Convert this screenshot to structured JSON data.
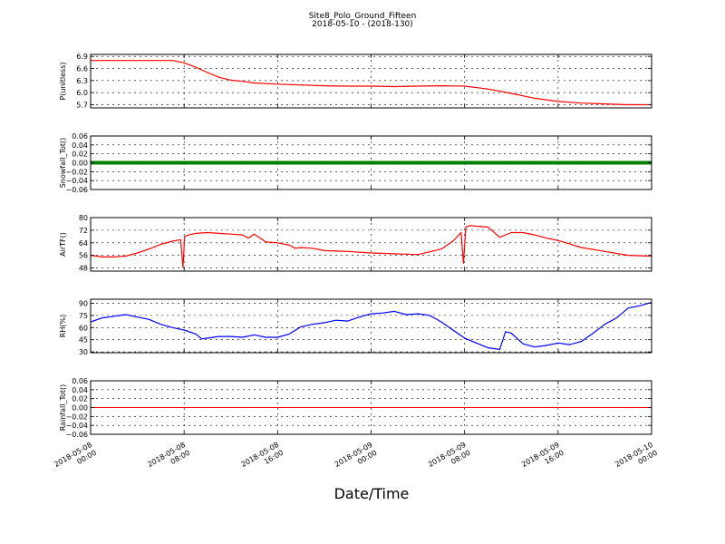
{
  "figure": {
    "title": "Site8_Polo_Ground_Fifteen",
    "subtitle": "2018-05-10 - (2018-130)",
    "xlabel": "Date/Time",
    "x_tick_labels": [
      [
        "2018-05-08",
        "00:00"
      ],
      [
        "2018-05-08",
        "08:00"
      ],
      [
        "2018-05-08",
        "16:00"
      ],
      [
        "2018-05-09",
        "00:00"
      ],
      [
        "2018-05-09",
        "08:00"
      ],
      [
        "2018-05-09",
        "16:00"
      ],
      [
        "2018-05-10",
        "00:00"
      ]
    ]
  },
  "chart_data": [
    {
      "type": "line",
      "ylabel": "P(unitless)",
      "color": "#ff0000",
      "xlim_hours": [
        0,
        48
      ],
      "ylim": [
        5.62,
        6.95
      ],
      "yticks": [
        5.7,
        6.0,
        6.3,
        6.6,
        6.9
      ],
      "ytick_labels": [
        "5.7",
        "6.0",
        "6.3",
        "6.6",
        "6.9"
      ],
      "grid": true,
      "x": [
        0,
        7,
        8,
        9,
        10,
        11,
        12,
        13,
        14,
        16,
        18,
        20,
        22,
        24,
        26,
        28,
        30,
        32,
        34,
        36,
        38,
        40,
        42,
        44,
        46,
        48
      ],
      "values": [
        6.8,
        6.8,
        6.74,
        6.63,
        6.5,
        6.38,
        6.31,
        6.28,
        6.24,
        6.21,
        6.19,
        6.17,
        6.16,
        6.16,
        6.15,
        6.16,
        6.17,
        6.16,
        6.09,
        5.98,
        5.86,
        5.78,
        5.74,
        5.72,
        5.7,
        5.7
      ]
    },
    {
      "type": "line",
      "ylabel": "Snowfall_Tot()",
      "color": "#008000",
      "xlim_hours": [
        0,
        48
      ],
      "ylim": [
        -0.06,
        0.06
      ],
      "yticks": [
        -0.06,
        -0.04,
        -0.02,
        0.0,
        0.02,
        0.04,
        0.06
      ],
      "ytick_labels": [
        "−0.06",
        "−0.04",
        "−0.02",
        "0.00",
        "0.02",
        "0.04",
        "0.06"
      ],
      "grid": true,
      "x": [
        0,
        48
      ],
      "values": [
        0,
        0
      ]
    },
    {
      "type": "line",
      "ylabel": "AirTF()",
      "color": "#ff0000",
      "xlim_hours": [
        0,
        48
      ],
      "ylim": [
        46,
        80
      ],
      "yticks": [
        48,
        56,
        64,
        72,
        80
      ],
      "ytick_labels": [
        "48",
        "56",
        "64",
        "72",
        "80"
      ],
      "grid": true,
      "x": [
        0,
        1,
        2,
        3,
        4,
        5,
        6,
        7,
        7.7,
        7.9,
        8.05,
        8.4,
        9,
        10,
        11,
        12,
        13,
        13.5,
        14,
        15,
        16,
        17,
        17.5,
        18,
        19,
        20,
        22,
        24,
        26,
        28,
        30,
        31,
        31.7,
        31.9,
        32.1,
        32.5,
        33,
        34,
        35,
        36,
        37,
        38,
        39,
        40,
        42,
        44,
        46,
        48
      ],
      "values": [
        56,
        55,
        55,
        55.5,
        57.5,
        60,
        63,
        65,
        66,
        48.5,
        68,
        69,
        70,
        70.5,
        70,
        69.5,
        69,
        67,
        69.5,
        64.5,
        64,
        62.5,
        60.5,
        61,
        60.5,
        59,
        58.5,
        57.5,
        57,
        56.5,
        60,
        65,
        70.5,
        51,
        74,
        75,
        74.5,
        74,
        67.5,
        70.5,
        70.5,
        69,
        67,
        65.5,
        61,
        58.5,
        56,
        55.5
      ]
    },
    {
      "type": "line",
      "ylabel": "RH(%)",
      "color": "#0000ff",
      "xlim_hours": [
        0,
        48
      ],
      "ylim": [
        29,
        95
      ],
      "yticks": [
        30,
        45,
        60,
        75,
        90
      ],
      "ytick_labels": [
        "30",
        "45",
        "60",
        "75",
        "90"
      ],
      "grid": true,
      "x": [
        0,
        1,
        2,
        3,
        4,
        5,
        6,
        7,
        8,
        9,
        9.5,
        10,
        11,
        12,
        13,
        14,
        15,
        16,
        17,
        18,
        19,
        20,
        21,
        22,
        23,
        24,
        25,
        26,
        27,
        28,
        29,
        30,
        31,
        32,
        33,
        34,
        35,
        35.5,
        36,
        37,
        38,
        39,
        40,
        41,
        42,
        43,
        44,
        45,
        46,
        47,
        48
      ],
      "values": [
        67,
        72,
        74,
        76,
        73,
        70,
        64,
        60,
        57,
        52,
        46,
        47,
        49,
        49,
        48,
        51,
        48,
        48,
        52,
        61,
        64,
        66,
        69,
        68,
        73,
        77,
        78,
        80,
        76,
        77,
        75,
        67,
        57,
        47,
        41,
        35,
        33,
        55,
        53,
        40,
        36,
        38,
        41,
        39,
        43,
        53,
        64,
        72,
        84,
        87,
        91
      ]
    },
    {
      "type": "line",
      "ylabel": "Rainfall_Tot()",
      "color": "#ff0000",
      "xlim_hours": [
        0,
        48
      ],
      "ylim": [
        -0.06,
        0.06
      ],
      "yticks": [
        -0.06,
        -0.04,
        -0.02,
        0.0,
        0.02,
        0.04,
        0.06
      ],
      "ytick_labels": [
        "−0.06",
        "−0.04",
        "−0.02",
        "0.00",
        "0.02",
        "0.04",
        "0.06"
      ],
      "grid": true,
      "x": [
        0,
        48
      ],
      "values": [
        0,
        0
      ]
    }
  ]
}
